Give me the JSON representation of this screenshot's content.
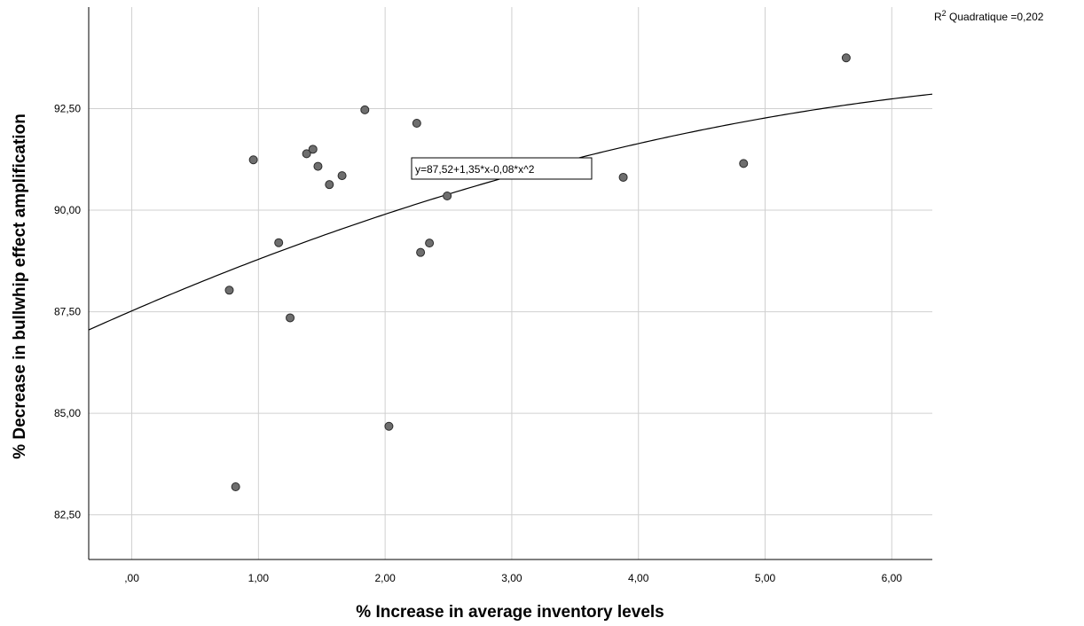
{
  "chart_data": {
    "type": "scatter",
    "title": "",
    "xlabel": "% Increase in average inventory levels",
    "ylabel": "% Decrease in bullwhip effect amplification",
    "xlim": [
      -0.34,
      6.32
    ],
    "ylim": [
      81.4,
      95.0
    ],
    "x_ticks": [
      0,
      1,
      2,
      3,
      4,
      5,
      6
    ],
    "x_tick_labels": [
      ",00",
      "1,00",
      "2,00",
      "3,00",
      "4,00",
      "5,00",
      "6,00"
    ],
    "y_ticks": [
      82.5,
      85,
      87.5,
      90,
      92.5
    ],
    "y_tick_labels": [
      "82,50",
      "85,00",
      "87,50",
      "90,00",
      "92,50"
    ],
    "grid": true,
    "points": [
      {
        "x": 0.77,
        "y": 88.03
      },
      {
        "x": 0.82,
        "y": 83.19
      },
      {
        "x": 0.96,
        "y": 91.24
      },
      {
        "x": 1.16,
        "y": 89.2
      },
      {
        "x": 1.25,
        "y": 87.35
      },
      {
        "x": 1.38,
        "y": 91.39
      },
      {
        "x": 1.43,
        "y": 91.5
      },
      {
        "x": 1.47,
        "y": 91.08
      },
      {
        "x": 1.56,
        "y": 90.63
      },
      {
        "x": 1.66,
        "y": 90.85
      },
      {
        "x": 1.84,
        "y": 92.47
      },
      {
        "x": 2.03,
        "y": 84.68
      },
      {
        "x": 2.25,
        "y": 92.14
      },
      {
        "x": 2.28,
        "y": 88.96
      },
      {
        "x": 2.35,
        "y": 89.19
      },
      {
        "x": 2.49,
        "y": 90.35
      },
      {
        "x": 3.23,
        "y": 91.12
      },
      {
        "x": 3.88,
        "y": 90.81
      },
      {
        "x": 4.83,
        "y": 91.15
      },
      {
        "x": 5.64,
        "y": 93.75
      }
    ],
    "fit": {
      "type": "quadratic",
      "equation_label": "y=87,52+1,35*x-0,08*x^2",
      "r2_prefix": "R",
      "r2_sup": "2",
      "r2_label": " Quadratique =0,202"
    },
    "colors": {
      "point_fill": "#6e6e6e",
      "point_stroke": "#2b2b2b",
      "grid": "#d0d0d0",
      "axis": "#000000",
      "curve": "#000000"
    }
  }
}
